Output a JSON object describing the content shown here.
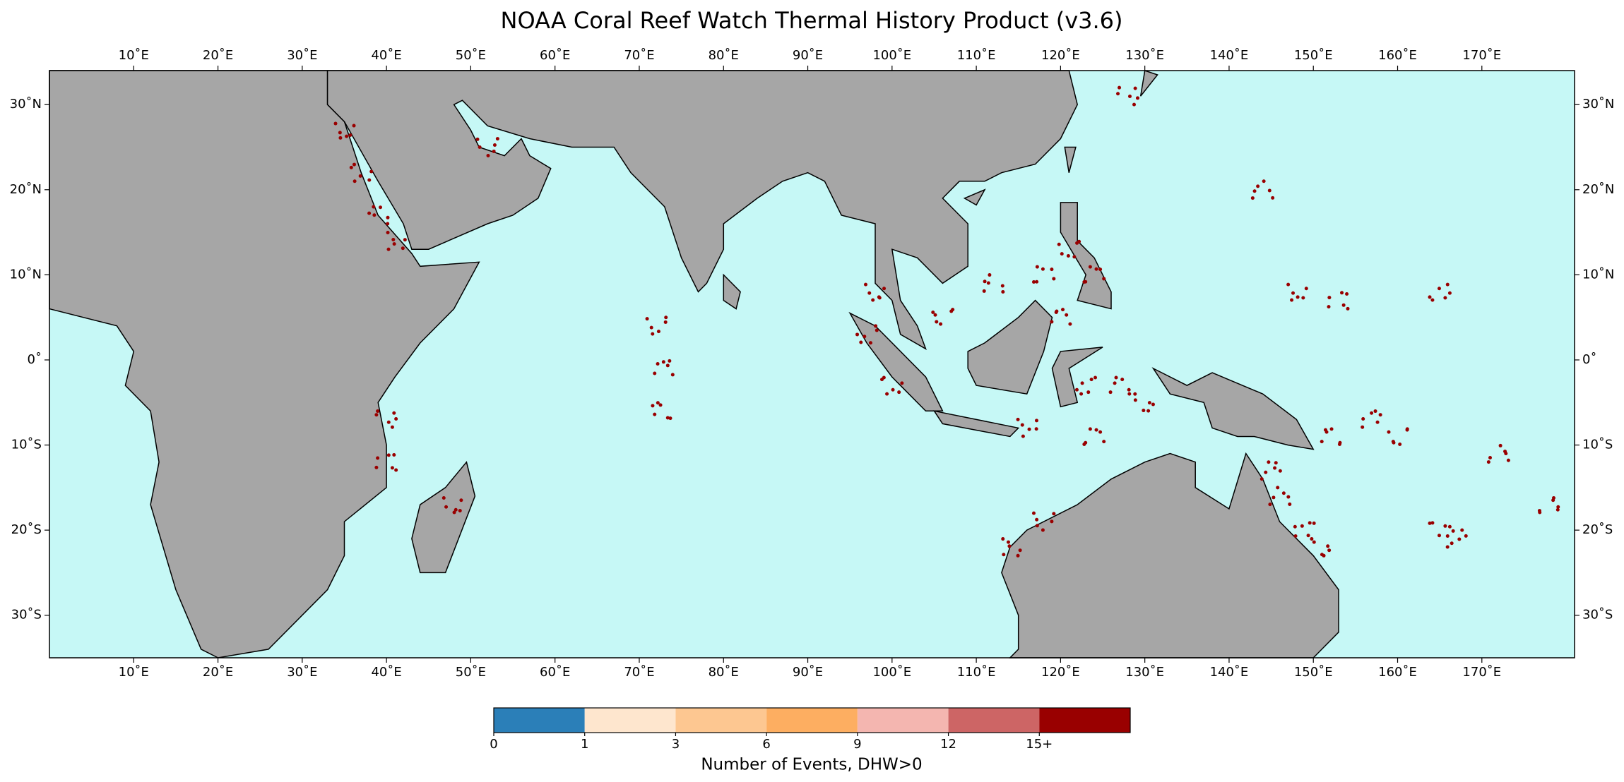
{
  "chart_data": {
    "type": "map",
    "title": "NOAA Coral Reef Watch Thermal History Product (v3.6)",
    "xlim": [
      0,
      181
    ],
    "ylim": [
      -35,
      34
    ],
    "xticks": [
      {
        "value": 10,
        "label": "10˚E"
      },
      {
        "value": 20,
        "label": "20˚E"
      },
      {
        "value": 30,
        "label": "30˚E"
      },
      {
        "value": 40,
        "label": "40˚E"
      },
      {
        "value": 50,
        "label": "50˚E"
      },
      {
        "value": 60,
        "label": "60˚E"
      },
      {
        "value": 70,
        "label": "70˚E"
      },
      {
        "value": 80,
        "label": "80˚E"
      },
      {
        "value": 90,
        "label": "90˚E"
      },
      {
        "value": 100,
        "label": "100˚E"
      },
      {
        "value": 110,
        "label": "110˚E"
      },
      {
        "value": 120,
        "label": "120˚E"
      },
      {
        "value": 130,
        "label": "130˚E"
      },
      {
        "value": 140,
        "label": "140˚E"
      },
      {
        "value": 150,
        "label": "150˚E"
      },
      {
        "value": 160,
        "label": "160˚E"
      },
      {
        "value": 170,
        "label": "170˚E"
      }
    ],
    "yticks": [
      {
        "value": 30,
        "label": "30˚N"
      },
      {
        "value": 20,
        "label": "20˚N"
      },
      {
        "value": 10,
        "label": "10˚N"
      },
      {
        "value": 0,
        "label": "0˚"
      },
      {
        "value": -10,
        "label": "10˚S"
      },
      {
        "value": -20,
        "label": "20˚S"
      },
      {
        "value": -30,
        "label": "30˚S"
      }
    ],
    "colorbar": {
      "label": "Number of Events, DHW>0",
      "ticks": [
        "0",
        "1",
        "3",
        "6",
        "9",
        "12",
        "15+"
      ],
      "colors": [
        "#2b7fb8",
        "#fee6ce",
        "#fdc791",
        "#fdae61",
        "#f4b6b0",
        "#cd6565",
        "#990000"
      ]
    }
  }
}
